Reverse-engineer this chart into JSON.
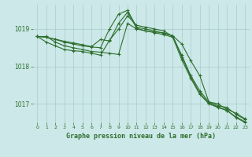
{
  "bg_color": "#cce8e8",
  "grid_color": "#aacccc",
  "line_color": "#2d6e2d",
  "title": "Graphe pression niveau de la mer (hPa)",
  "xlim": [
    -0.5,
    23.5
  ],
  "ylim": [
    1016.5,
    1019.65
  ],
  "yticks": [
    1017,
    1018,
    1019
  ],
  "xticks": [
    0,
    1,
    2,
    3,
    4,
    5,
    6,
    7,
    8,
    9,
    10,
    11,
    12,
    13,
    14,
    15,
    16,
    17,
    18,
    19,
    20,
    21,
    22,
    23
  ],
  "series": [
    [
      1018.8,
      1018.8,
      1018.65,
      1018.55,
      1018.5,
      1018.45,
      1018.4,
      1018.38,
      1018.35,
      1018.32,
      1019.15,
      1019.0,
      1018.95,
      1018.92,
      1018.9,
      1018.82,
      1018.6,
      1018.15,
      1017.75,
      1017.05,
      1017.0,
      1016.85,
      1016.75,
      1016.6
    ],
    [
      1018.8,
      1018.65,
      1018.55,
      1018.45,
      1018.42,
      1018.4,
      1018.35,
      1018.3,
      1018.7,
      1019.0,
      1019.35,
      1019.1,
      1019.05,
      1019.0,
      1018.95,
      1018.8,
      1018.3,
      1017.75,
      1017.35,
      1017.05,
      1016.95,
      1016.9,
      1016.72,
      1016.58
    ],
    [
      1018.8,
      1018.78,
      1018.72,
      1018.65,
      1018.6,
      1018.55,
      1018.52,
      1018.5,
      1019.0,
      1019.4,
      1019.5,
      1019.05,
      1019.0,
      1018.95,
      1018.88,
      1018.82,
      1018.25,
      1017.72,
      1017.28,
      1017.02,
      1016.92,
      1016.82,
      1016.65,
      1016.52
    ],
    [
      1018.8,
      1018.78,
      1018.73,
      1018.67,
      1018.63,
      1018.58,
      1018.53,
      1018.72,
      1018.68,
      1019.15,
      1019.45,
      1019.02,
      1018.95,
      1018.9,
      1018.85,
      1018.78,
      1018.18,
      1017.68,
      1017.25,
      1017.0,
      1016.9,
      1016.82,
      1016.63,
      1016.5
    ]
  ]
}
